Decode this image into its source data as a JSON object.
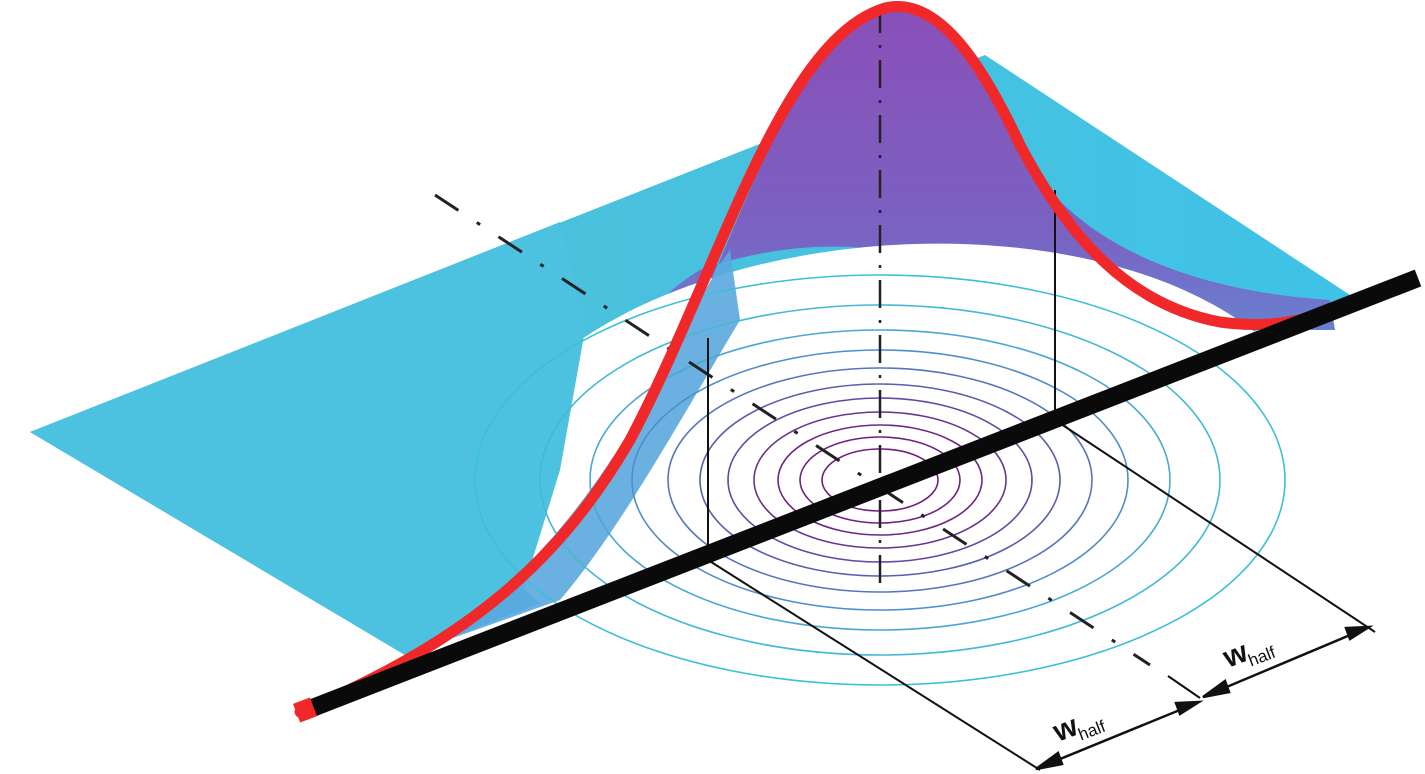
{
  "labels": {
    "w_main": "w",
    "w_sub": "half"
  },
  "colors": {
    "plane": "#4fc3d9",
    "surface_top": "#8a4fb8",
    "surface_mid": "#6a8ad6",
    "surface_low": "#33c4ee",
    "profile_curve": "#f0282a",
    "axis_bar": "#0a0a0a",
    "contour_inner": "#6b1f7a",
    "contour_outer": "#3cc0d6",
    "guide_lines": "#111111"
  }
}
